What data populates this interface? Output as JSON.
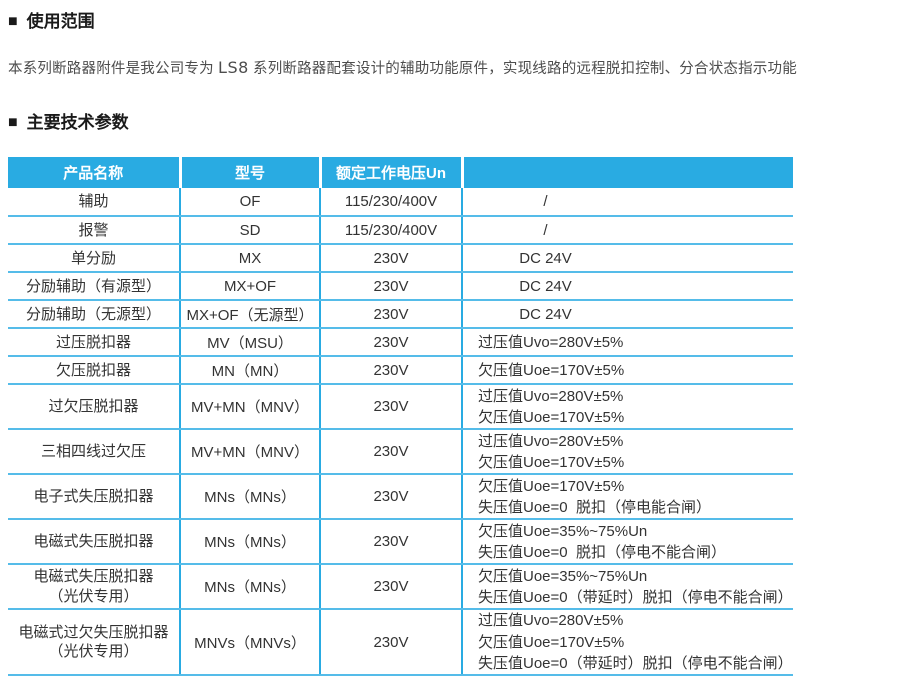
{
  "usage_section": {
    "bullet": "■",
    "heading": "使用范围",
    "paragraph": {
      "prefix": "本系列断路器附件是我公司专为 ",
      "brand": "LS8",
      "suffix": " 系列断路器配套设计的辅助功能原件，实现线路的远程脱扣控制、分合状态指示功能"
    }
  },
  "params_section": {
    "bullet": "■",
    "heading": "主要技术参数"
  },
  "table": {
    "headers": [
      "产品名称",
      "型号",
      "额定工作电压Un",
      ""
    ],
    "rows": [
      {
        "name": "辅助",
        "model": "OF",
        "voltage": "115/230/400V",
        "spec": "/",
        "spec_align": "center"
      },
      {
        "name": "报警",
        "model": "SD",
        "voltage": "115/230/400V",
        "spec": "/",
        "spec_align": "center"
      },
      {
        "name": "单分励",
        "model": "MX",
        "voltage": "230V",
        "spec": "DC 24V",
        "spec_align": "center"
      },
      {
        "name": "分励辅助（有源型）",
        "model": "MX+OF",
        "voltage": "230V",
        "spec": "DC 24V",
        "spec_align": "center"
      },
      {
        "name": "分励辅助（无源型）",
        "model": "MX+OF（无源型）",
        "voltage": "230V",
        "spec": "DC 24V",
        "spec_align": "center"
      },
      {
        "name": "过压脱扣器",
        "model": "MV（MSU）",
        "voltage": "230V",
        "spec": "过压值Uvo=280V±5%",
        "spec_align": "left"
      },
      {
        "name": "欠压脱扣器",
        "model": "MN（MN）",
        "voltage": "230V",
        "spec": "欠压值Uoe=170V±5%",
        "spec_align": "left"
      },
      {
        "name": "过欠压脱扣器",
        "model": "MV+MN（MNV）",
        "voltage": "230V",
        "spec": "过压值Uvo=280V±5%\n欠压值Uoe=170V±5%",
        "spec_align": "left"
      },
      {
        "name": "三相四线过欠压",
        "model": "MV+MN（MNV）",
        "voltage": "230V",
        "spec": "过压值Uvo=280V±5%\n欠压值Uoe=170V±5%",
        "spec_align": "left"
      },
      {
        "name": "电子式失压脱扣器",
        "model": "MNs（MNs）",
        "voltage": "230V",
        "spec": "欠压值Uoe=170V±5%\n失压值Uoe=0  脱扣（停电能合闸）",
        "spec_align": "left"
      },
      {
        "name": "电磁式失压脱扣器",
        "model": "MNs（MNs）",
        "voltage": "230V",
        "spec": "欠压值Uoe=35%~75%Un\n失压值Uoe=0  脱扣（停电不能合闸）",
        "spec_align": "left"
      },
      {
        "name": "电磁式失压脱扣器\n（光伏专用）",
        "model": "MNs（MNs）",
        "voltage": "230V",
        "spec": "欠压值Uoe=35%~75%Un\n失压值Uoe=0（带延时）脱扣（停电不能合闸）",
        "spec_align": "left"
      },
      {
        "name": "电磁式过欠失压脱扣器\n（光伏专用）",
        "model": "MNVs（MNVs）",
        "voltage": "230V",
        "spec": "过压值Uvo=280V±5%\n欠压值Uoe=170V±5%\n失压值Uoe=0（带延时）脱扣（停电不能合闸）",
        "spec_align": "left"
      }
    ]
  },
  "colors": {
    "header_bg": "#29abe2",
    "header_text": "#ffffff",
    "grid_line": "#55bce9",
    "body_text": "#333333"
  }
}
